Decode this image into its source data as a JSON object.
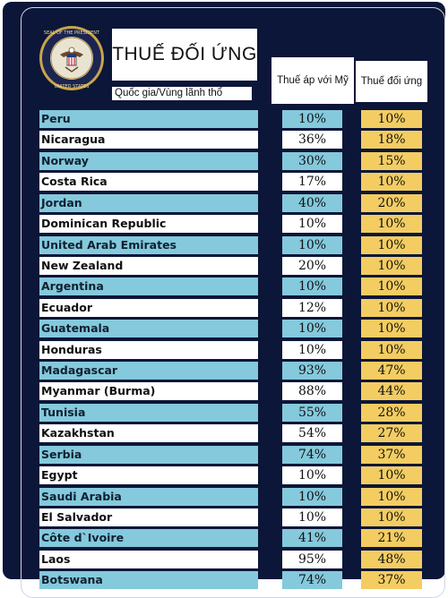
{
  "header": {
    "title": "THUẾ ĐỐI ỨNG",
    "subtitle": "Quốc gia/Vùng lãnh thổ",
    "col_us": "Thuế áp với Mỹ",
    "col_reciprocal": "Thuế đối ứng",
    "seal": "presidential-seal",
    "seal_text": "SEAL OF THE PRESIDENT OF THE UNITED STATES"
  },
  "colors": {
    "background": "#0c1638",
    "row_blue": "#84c9dc",
    "row_white": "#ffffff",
    "reciprocal_cell": "#f3cd62"
  },
  "rows": [
    {
      "country": "Peru",
      "us": "10%",
      "rec": "10%"
    },
    {
      "country": "Nicaragua",
      "us": "36%",
      "rec": "18%"
    },
    {
      "country": "Norway",
      "us": "30%",
      "rec": "15%"
    },
    {
      "country": "Costa Rica",
      "us": "17%",
      "rec": "10%"
    },
    {
      "country": "Jordan",
      "us": "40%",
      "rec": "20%"
    },
    {
      "country": "Dominican Republic",
      "us": "10%",
      "rec": "10%"
    },
    {
      "country": "United Arab Emirates",
      "us": "10%",
      "rec": "10%"
    },
    {
      "country": "New Zealand",
      "us": "20%",
      "rec": "10%"
    },
    {
      "country": "Argentina",
      "us": "10%",
      "rec": "10%"
    },
    {
      "country": "Ecuador",
      "us": "12%",
      "rec": "10%"
    },
    {
      "country": "Guatemala",
      "us": "10%",
      "rec": "10%"
    },
    {
      "country": "Honduras",
      "us": "10%",
      "rec": "10%"
    },
    {
      "country": "Madagascar",
      "us": "93%",
      "rec": "47%"
    },
    {
      "country": "Myanmar (Burma)",
      "us": "88%",
      "rec": "44%"
    },
    {
      "country": "Tunisia",
      "us": "55%",
      "rec": "28%"
    },
    {
      "country": "Kazakhstan",
      "us": "54%",
      "rec": "27%"
    },
    {
      "country": "Serbia",
      "us": "74%",
      "rec": "37%"
    },
    {
      "country": "Egypt",
      "us": "10%",
      "rec": "10%"
    },
    {
      "country": "Saudi Arabia",
      "us": "10%",
      "rec": "10%"
    },
    {
      "country": "El Salvador",
      "us": "10%",
      "rec": "10%"
    },
    {
      "country": "Côte d`Ivoire",
      "us": "41%",
      "rec": "21%"
    },
    {
      "country": "Laos",
      "us": "95%",
      "rec": "48%"
    },
    {
      "country": "Botswana",
      "us": "74%",
      "rec": "37%"
    }
  ]
}
